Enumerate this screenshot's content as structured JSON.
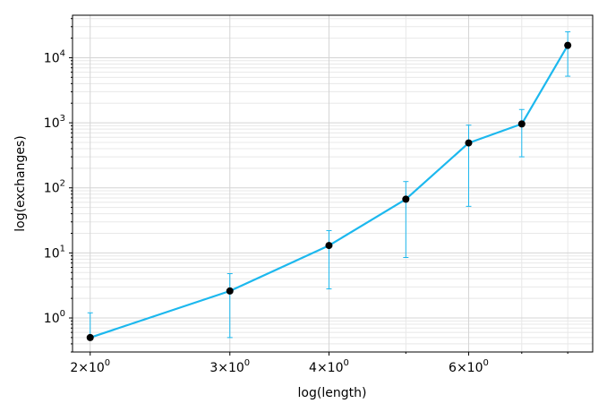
{
  "chart_data": {
    "type": "line",
    "xlabel": "log(length)",
    "ylabel": "log(exchanges)",
    "x_scale": "log",
    "y_scale": "log",
    "xlim": [
      1.9,
      8.6
    ],
    "ylim": [
      0.3,
      45000
    ],
    "grid": {
      "major": true,
      "minor": true
    },
    "x_ticks": [
      {
        "value": 2,
        "base": "2",
        "exp": "0"
      },
      {
        "value": 3,
        "base": "3",
        "exp": "0"
      },
      {
        "value": 4,
        "base": "4",
        "exp": "0"
      },
      {
        "value": 6,
        "base": "6",
        "exp": "0"
      }
    ],
    "y_ticks": [
      {
        "value": 1,
        "base": "10",
        "exp": "0"
      },
      {
        "value": 10,
        "base": "10",
        "exp": "1"
      },
      {
        "value": 100,
        "base": "10",
        "exp": "2"
      },
      {
        "value": 1000,
        "base": "10",
        "exp": "3"
      },
      {
        "value": 10000,
        "base": "10",
        "exp": "4"
      }
    ],
    "series": [
      {
        "line_color": "#1cb8ee",
        "marker_color": "#000000",
        "error_color": "#1cb8ee",
        "x": [
          2,
          3,
          4,
          5,
          6,
          7,
          8
        ],
        "y": [
          0.5,
          2.6,
          13,
          67,
          490,
          960,
          15500
        ],
        "y_err_low": [
          0.5,
          0.5,
          2.8,
          8.5,
          52,
          300,
          5200
        ],
        "y_err_high": [
          1.2,
          4.8,
          22,
          125,
          920,
          1600,
          25000
        ]
      }
    ]
  }
}
